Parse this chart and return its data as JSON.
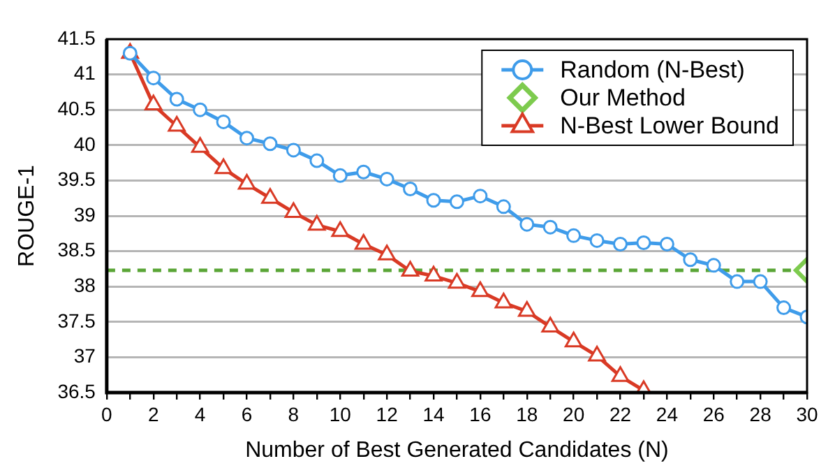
{
  "chart_data": {
    "type": "line",
    "xlabel": "Number of Best Generated Candidates (N)",
    "ylabel": "ROUGE-1",
    "xlim": [
      0,
      30
    ],
    "xticks": [
      0,
      {
        "value": 1,
        "label": null
      },
      2,
      {
        "value": 3,
        "label": null
      },
      4,
      {
        "value": 5,
        "label": null
      },
      6,
      {
        "value": 7,
        "label": null
      },
      8,
      {
        "value": 9,
        "label": null
      },
      10,
      {
        "value": 11,
        "label": null
      },
      12,
      {
        "value": 13,
        "label": null
      },
      14,
      {
        "value": 15,
        "label": null
      },
      16,
      {
        "value": 17,
        "label": null
      },
      18,
      {
        "value": 19,
        "label": null
      },
      20,
      {
        "value": 21,
        "label": null
      },
      22,
      {
        "value": 23,
        "label": null
      },
      24,
      {
        "value": 25,
        "label": null
      },
      26,
      {
        "value": 27,
        "label": null
      },
      28,
      {
        "value": 29,
        "label": null
      },
      30
    ],
    "ylim": [
      36.5,
      41.5
    ],
    "yticks": [
      36.5,
      37,
      37.5,
      38,
      38.5,
      39,
      39.5,
      40,
      40.5,
      41,
      41.5
    ],
    "grid": "y",
    "legend": "top right",
    "line_style": "solid",
    "series": [
      {
        "name": "Random (N-Best)",
        "color": "#3f9cea",
        "marker": "circle",
        "x": [
          1,
          2,
          3,
          4,
          5,
          6,
          7,
          8,
          9,
          10,
          11,
          12,
          13,
          14,
          15,
          16,
          17,
          18,
          19,
          20,
          21,
          22,
          23,
          24,
          25,
          26,
          27,
          28,
          29,
          30
        ],
        "values": [
          41.3,
          40.95,
          40.65,
          40.5,
          40.33,
          40.1,
          40.02,
          39.93,
          39.78,
          39.57,
          39.62,
          39.52,
          39.38,
          39.22,
          39.2,
          39.28,
          39.13,
          38.88,
          38.84,
          38.72,
          38.65,
          38.6,
          38.62,
          38.6,
          38.38,
          38.3,
          38.07,
          38.07,
          37.7,
          37.57
        ]
      },
      {
        "name": "Our Method",
        "type": "scatter",
        "color": "#7dcb4e",
        "marker": "diamond",
        "x": [
          30
        ],
        "values": [
          38.23
        ]
      },
      {
        "name": "N-Best Lower Bound",
        "color": "#d93a25",
        "marker": "triangle",
        "x": [
          1,
          2,
          3,
          4,
          5,
          6,
          7,
          8,
          9,
          10,
          11,
          12,
          13,
          14,
          15,
          16,
          17,
          18,
          19,
          20,
          21,
          22,
          23
        ],
        "values": [
          41.3,
          40.57,
          40.27,
          39.97,
          39.67,
          39.45,
          39.25,
          39.05,
          38.87,
          38.78,
          38.6,
          38.45,
          38.22,
          38.15,
          38.05,
          37.93,
          37.77,
          37.65,
          37.43,
          37.22,
          37.02,
          36.73,
          36.53
        ]
      }
    ],
    "ref_lines": [
      {
        "axis": "y",
        "value": 38.23,
        "color": "#5aa536",
        "line_style": "dashed"
      }
    ]
  }
}
